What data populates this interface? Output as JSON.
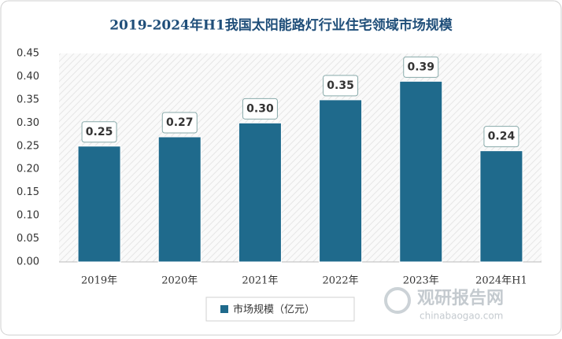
{
  "chart_data": {
    "type": "bar",
    "title": "2019-2024年H1我国太阳能路灯行业住宅领域市场规模",
    "categories": [
      "2019年",
      "2020年",
      "2021年",
      "2022年",
      "2023年",
      "2024年H1"
    ],
    "series": [
      {
        "name": "市场规模（亿元）",
        "color": "#1f6a8c",
        "values": [
          0.25,
          0.27,
          0.3,
          0.35,
          0.39,
          0.24
        ],
        "value_labels": [
          "0.25",
          "0.27",
          "0.30",
          "0.35",
          "0.39",
          "0.24"
        ]
      }
    ],
    "ylim": [
      0,
      0.45
    ],
    "yticks": [
      {
        "value": 0,
        "label": "0.00"
      },
      0.05,
      {
        "value": 0.1,
        "label": "0.10"
      },
      0.15,
      {
        "value": 0.2,
        "label": "0.20"
      },
      0.25,
      {
        "value": 0.3,
        "label": "0.30"
      },
      0.35,
      {
        "value": 0.4,
        "label": "0.40"
      },
      0.45
    ],
    "legend": "bottom",
    "watermark": {
      "name": "观研报告网",
      "url": "chinabaogao.com"
    }
  }
}
